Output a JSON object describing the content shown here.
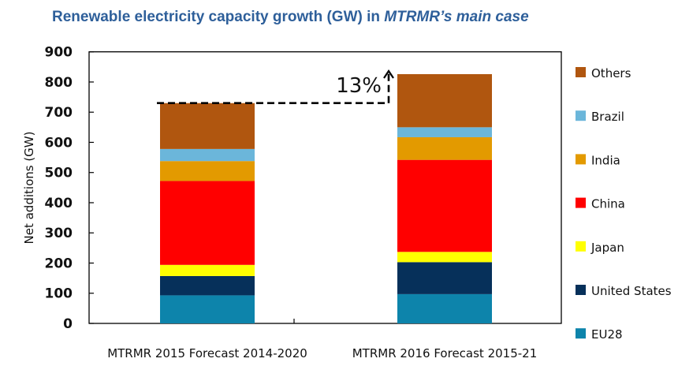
{
  "title": {
    "main": "Renewable electricity capacity growth (GW) in ",
    "italic": "MTRMR’s main case"
  },
  "chart_data": {
    "type": "bar",
    "stacked": true,
    "title": "Renewable electricity capacity growth (GW) in MTRMR’s main case",
    "xlabel": "",
    "ylabel": "Net additions (GW)",
    "ylim": [
      0,
      900
    ],
    "yticks": [
      0,
      100,
      200,
      300,
      400,
      500,
      600,
      700,
      800,
      900
    ],
    "grid": false,
    "legend_position": "right",
    "categories": [
      "MTRMR 2015 Forecast   2014-2020",
      "MTRMR 2016 Forecast   2015-21"
    ],
    "series": [
      {
        "name": "EU28",
        "color": "#0D84AB",
        "values": [
          93,
          97
        ]
      },
      {
        "name": "United States",
        "color": "#06305A",
        "values": [
          64,
          106
        ]
      },
      {
        "name": "Japan",
        "color": "#FFFF00",
        "values": [
          37,
          34
        ]
      },
      {
        "name": "China",
        "color": "#FF0000",
        "values": [
          278,
          305
        ]
      },
      {
        "name": "India",
        "color": "#E39A00",
        "values": [
          66,
          75
        ]
      },
      {
        "name": "Brazil",
        "color": "#6BB6DA",
        "values": [
          40,
          33
        ]
      },
      {
        "name": "Others",
        "color": "#B0560F",
        "values": [
          152,
          176
        ]
      }
    ],
    "totals": [
      730,
      826
    ],
    "annotations": [
      {
        "text": "13%",
        "description": "growth from 2015 forecast total to 2016 forecast total (dashed arrow)"
      }
    ]
  }
}
